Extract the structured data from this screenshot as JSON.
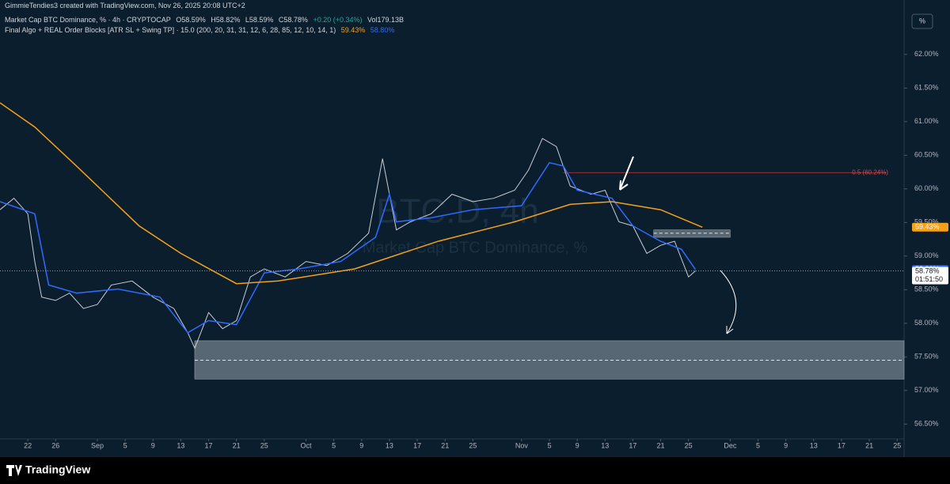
{
  "header": {
    "credit": "GimmieTendies3 created with TradingView.com, Nov 26, 2025 20:08 UTC+2",
    "symbol": "Market Cap BTC Dominance, % · 4h · CRYPTOCAP",
    "ohlc": [
      "O58.59%",
      "H58.82%",
      "L58.59%",
      "C58.78%"
    ],
    "change": "+0.20 (+0.34%)",
    "volume": "Vol179.13B",
    "indicator": "Final Algo + REAL Order Blocks [ATR SL + Swing TP] · 15.0 (200, 20, 31, 31, 12, 6, 28, 85, 12, 10, 14, 1)",
    "indicator_values": [
      "59.43%",
      "58.80%"
    ],
    "scale_button": "%"
  },
  "watermark": {
    "symbol": "BTC.D, 4h",
    "name": "Market Cap BTC Dominance, %"
  },
  "chart_data": {
    "type": "line",
    "xlim": [
      -4,
      126
    ],
    "ylim": [
      56.28,
      62.81
    ],
    "xticks": [
      {
        "value": 0,
        "label": "22"
      },
      {
        "value": 4,
        "label": "26"
      },
      {
        "value": 10,
        "label": "Sep"
      },
      {
        "value": 14,
        "label": "5"
      },
      {
        "value": 18,
        "label": "9"
      },
      {
        "value": 22,
        "label": "13"
      },
      {
        "value": 26,
        "label": "17"
      },
      {
        "value": 30,
        "label": "21"
      },
      {
        "value": 34,
        "label": "25"
      },
      {
        "value": 40,
        "label": "Oct"
      },
      {
        "value": 44,
        "label": "5"
      },
      {
        "value": 48,
        "label": "9"
      },
      {
        "value": 52,
        "label": "13"
      },
      {
        "value": 56,
        "label": "17"
      },
      {
        "value": 60,
        "label": "21"
      },
      {
        "value": 64,
        "label": "25"
      },
      {
        "value": 71,
        "label": "Nov"
      },
      {
        "value": 75,
        "label": "5"
      },
      {
        "value": 79,
        "label": "9"
      },
      {
        "value": 83,
        "label": "13"
      },
      {
        "value": 87,
        "label": "17"
      },
      {
        "value": 91,
        "label": "21"
      },
      {
        "value": 95,
        "label": "25"
      },
      {
        "value": 101,
        "label": "Dec"
      },
      {
        "value": 105,
        "label": "5"
      },
      {
        "value": 109,
        "label": "9"
      },
      {
        "value": 113,
        "label": "13"
      },
      {
        "value": 117,
        "label": "17"
      },
      {
        "value": 121,
        "label": "21"
      },
      {
        "value": 125,
        "label": "25"
      }
    ],
    "yticks": [
      {
        "value": 56.5,
        "label": "56.50%"
      },
      {
        "value": 57,
        "label": "57.00%"
      },
      {
        "value": 57.5,
        "label": "57.50%"
      },
      {
        "value": 58,
        "label": "58.00%"
      },
      {
        "value": 58.5,
        "label": "58.50%"
      },
      {
        "value": 59,
        "label": "59.00%"
      },
      {
        "value": 59.5,
        "label": "59.50%"
      },
      {
        "value": 60,
        "label": "60.00%"
      },
      {
        "value": 60.5,
        "label": "60.50%"
      },
      {
        "value": 61,
        "label": "61.00%"
      },
      {
        "value": 61.5,
        "label": "61.50%"
      },
      {
        "value": 62,
        "label": "62.00%"
      }
    ],
    "series": [
      {
        "color": "#c9ccd3",
        "x": [
          -4,
          -2,
          0,
          1,
          2,
          4,
          6,
          8,
          10,
          12,
          15,
          18,
          21,
          23,
          24,
          26,
          28,
          30,
          32,
          34,
          37,
          40,
          43,
          46,
          49,
          51,
          53,
          55,
          58,
          61,
          64,
          67,
          70,
          72,
          74,
          76,
          78,
          81,
          83,
          85,
          87,
          89,
          91,
          93,
          95,
          96
        ],
        "values": [
          59.69,
          59.86,
          59.63,
          58.92,
          58.39,
          58.34,
          58.45,
          58.22,
          58.28,
          58.57,
          58.63,
          58.39,
          58.22,
          57.86,
          57.63,
          58.16,
          57.92,
          58.04,
          58.69,
          58.81,
          58.69,
          58.92,
          58.86,
          59.04,
          59.34,
          60.45,
          59.39,
          59.51,
          59.63,
          59.92,
          59.81,
          59.86,
          59.98,
          60.28,
          60.75,
          60.63,
          60.04,
          59.92,
          59.98,
          59.51,
          59.45,
          59.04,
          59.16,
          59.22,
          58.69,
          58.78
        ]
      },
      {
        "color": "#2f6bff",
        "x": [
          -4,
          1,
          3,
          7,
          13,
          19,
          23,
          26,
          30,
          34,
          39,
          45,
          50,
          52,
          53,
          58,
          64,
          71,
          75,
          77,
          79,
          84,
          87,
          91,
          94,
          96
        ],
        "values": [
          59.81,
          59.63,
          58.57,
          58.45,
          58.51,
          58.39,
          57.86,
          58.04,
          57.98,
          58.75,
          58.81,
          58.92,
          59.28,
          59.92,
          59.51,
          59.57,
          59.69,
          59.75,
          60.39,
          60.34,
          59.98,
          59.86,
          59.45,
          59.22,
          59.1,
          58.8
        ]
      },
      {
        "color": "#f5a01a",
        "x": [
          -4,
          1,
          7,
          16,
          22,
          30,
          36,
          47,
          59,
          70,
          78,
          84,
          91,
          97
        ],
        "values": [
          61.28,
          60.92,
          60.34,
          59.45,
          59.04,
          58.59,
          58.63,
          58.81,
          59.22,
          59.51,
          59.77,
          59.81,
          59.69,
          59.43
        ]
      }
    ],
    "zones": [
      {
        "x_start": 24,
        "top": 57.74,
        "bottom": 57.17,
        "mid": 57.45
      },
      {
        "x_start": 90,
        "x_end": 101,
        "top": 59.39,
        "bottom": 59.28,
        "mid": 59.34
      }
    ],
    "fib": {
      "label": "0.5 (60.24%)",
      "value": 60.24,
      "x_start": 77
    },
    "price_labels": [
      {
        "value": 59.43,
        "label": "59.43%",
        "color": "#f5a01a"
      },
      {
        "value": 58.8,
        "label": "58.80%",
        "color": "#2f6bff"
      },
      {
        "value": 58.78,
        "label": "58.78%",
        "countdown": "01:51:50",
        "color": "#ffffff"
      }
    ]
  },
  "footer": {
    "logo": "TradingView"
  }
}
